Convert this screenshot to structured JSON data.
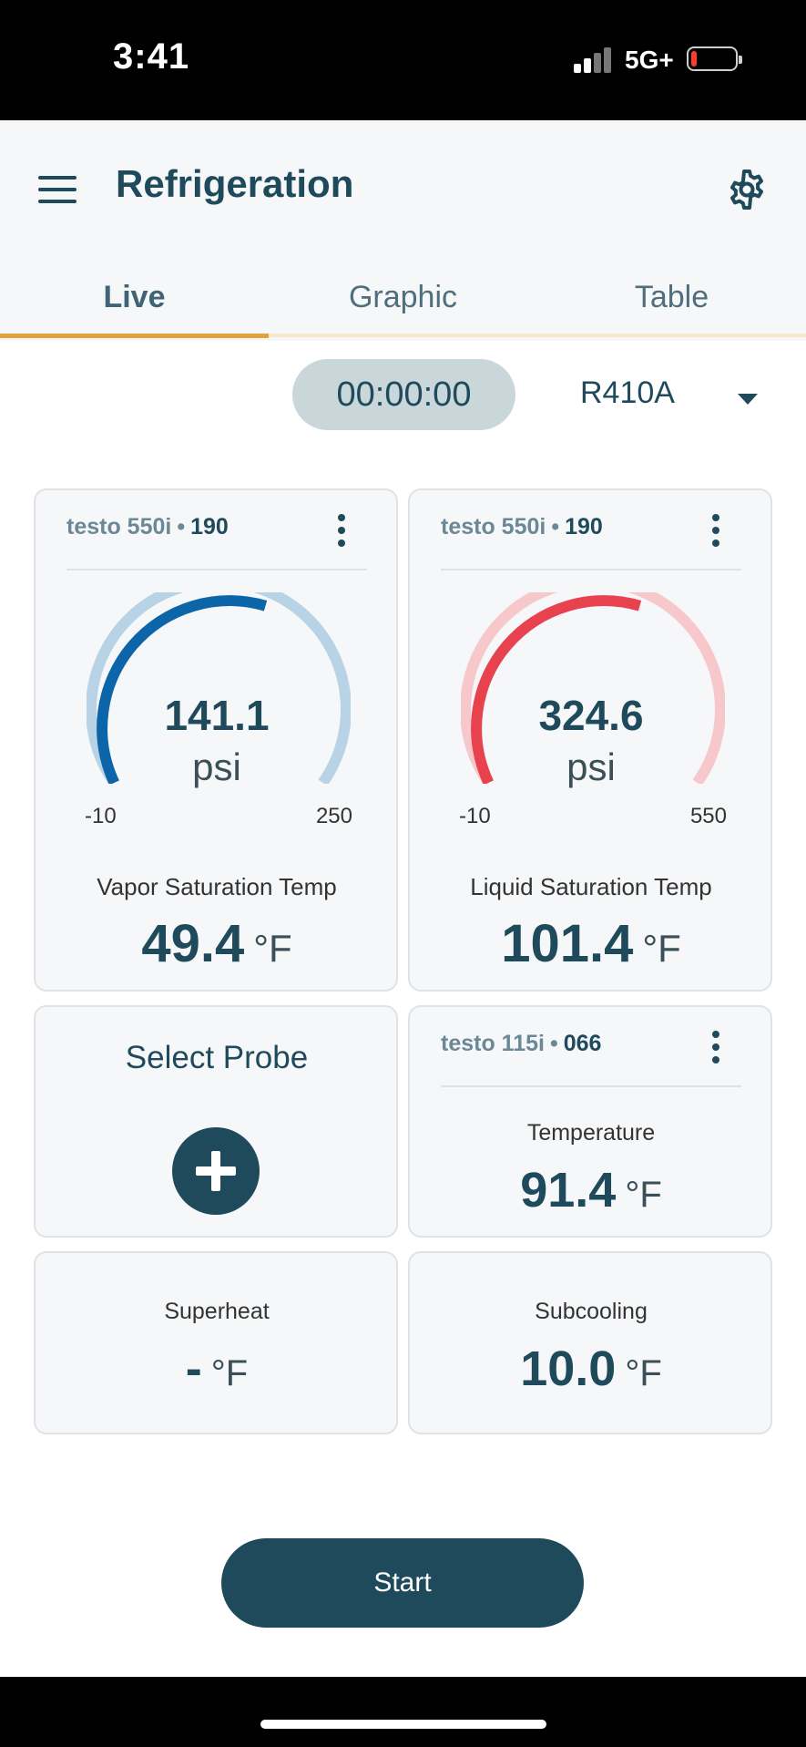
{
  "status_bar": {
    "time": "3:41",
    "network": "5G+",
    "battery_color": "#ff3b30"
  },
  "header": {
    "title": "Refrigeration"
  },
  "tabs": [
    {
      "label": "Live",
      "active": true
    },
    {
      "label": "Graphic",
      "active": false
    },
    {
      "label": "Table",
      "active": false
    }
  ],
  "timer": "00:00:00",
  "refrigerant": "R410A",
  "cards": {
    "low_side": {
      "device": "testo 550i",
      "serial": "190",
      "gauge_value": "141.1",
      "gauge_unit": "psi",
      "gauge_min": "-10",
      "gauge_max": "250",
      "gauge_color": "#0b65a8",
      "gauge_track_color": "#b7d3e5",
      "sat_label": "Vapor Saturation Temp",
      "sat_value": "49.4",
      "sat_unit": "°F"
    },
    "high_side": {
      "device": "testo 550i",
      "serial": "190",
      "gauge_value": "324.6",
      "gauge_unit": "psi",
      "gauge_min": "-10",
      "gauge_max": "550",
      "gauge_color": "#e8424f",
      "gauge_track_color": "#f6c8cc",
      "sat_label": "Liquid Saturation Temp",
      "sat_value": "101.4",
      "sat_unit": "°F"
    },
    "select_probe": {
      "label": "Select Probe"
    },
    "temperature": {
      "device": "testo 115i",
      "serial": "066",
      "label": "Temperature",
      "value": "91.4",
      "unit": "°F"
    },
    "superheat": {
      "label": "Superheat",
      "value": "-",
      "unit": "°F"
    },
    "subcooling": {
      "label": "Subcooling",
      "value": "10.0",
      "unit": "°F"
    }
  },
  "start_button": "Start"
}
